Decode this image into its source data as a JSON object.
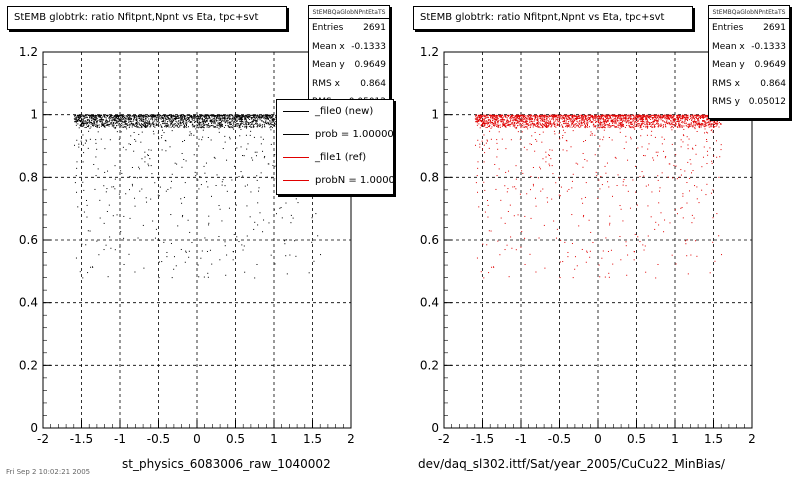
{
  "panels": [
    {
      "title": "StEMB globtrk: ratio Nfitpnt,Npnt vs Eta, tpc+svt",
      "stats_header": "StEMBQaGlobNPntEtaTS",
      "stats": [
        {
          "label": "Entries",
          "value": "2691"
        },
        {
          "label": "Mean x",
          "value": "-0.1333"
        },
        {
          "label": "Mean y",
          "value": "0.9649"
        },
        {
          "label": "RMS x",
          "value": "0.864"
        },
        {
          "label": "RMS y",
          "value": "0.05012"
        }
      ],
      "xtitle": "st_physics_6083006_raw_1040002",
      "marker_color": "#000000"
    },
    {
      "title": "StEMB globtrk: ratio Nfitpnt,Npnt vs Eta, tpc+svt",
      "stats_header": "StEMBQaGlobNPntEtaTS",
      "stats": [
        {
          "label": "Entries",
          "value": "2691"
        },
        {
          "label": "Mean x",
          "value": "-0.1333"
        },
        {
          "label": "Mean y",
          "value": "0.9649"
        },
        {
          "label": "RMS x",
          "value": "0.864"
        },
        {
          "label": "RMS y",
          "value": "0.05012"
        }
      ],
      "xtitle": "dev/daq_sl302.ittf/Sat/year_2005/CuCu22_MinBias/",
      "marker_color": "#e00000"
    }
  ],
  "legend": {
    "items": [
      {
        "label": "_file0 (new)",
        "color": "#000000"
      },
      {
        "label": "prob = 1.000000",
        "color": "#000000"
      },
      {
        "label": "_file1 (ref)",
        "color": "#e00000"
      },
      {
        "label": "probN = 1.000000",
        "color": "#e00000"
      }
    ]
  },
  "corner_text": "Fri Sep  2 10:02:21 2005",
  "chart_data": [
    {
      "type": "scatter",
      "title": "StEMB globtrk: ratio Nfitpnt,Npnt vs Eta, tpc+svt",
      "xlabel": "st_physics_6083006_raw_1040002",
      "ylabel": "",
      "xlim": [
        -2,
        2
      ],
      "ylim": [
        0,
        1.2
      ],
      "xticks": [
        "-2",
        "-1.5",
        "-1",
        "-0.5",
        "0",
        "0.5",
        "1",
        "1.5",
        "2"
      ],
      "yticks": [
        "0",
        "0.2",
        "0.4",
        "0.6",
        "0.8",
        "1",
        "1.2"
      ],
      "grid": true,
      "legend_position": "top-right",
      "series": [
        {
          "color": "#000000",
          "entries": 2691,
          "x_range": [
            -1.6,
            1.6
          ],
          "y_band": [
            0.96,
            1.0
          ],
          "y_min_sparse": 0.48
        }
      ]
    },
    {
      "type": "scatter",
      "title": "StEMB globtrk: ratio Nfitpnt,Npnt vs Eta, tpc+svt",
      "xlabel": "dev/daq_sl302.ittf/Sat/year_2005/CuCu22_MinBias/",
      "ylabel": "",
      "xlim": [
        -2,
        2
      ],
      "ylim": [
        0,
        1.2
      ],
      "xticks": [
        "-2",
        "-1.5",
        "-1",
        "-0.5",
        "0",
        "0.5",
        "1",
        "1.5",
        "2"
      ],
      "yticks": [
        "0",
        "0.2",
        "0.4",
        "0.6",
        "0.8",
        "1",
        "1.2"
      ],
      "grid": true,
      "series": [
        {
          "color": "#e00000",
          "entries": 2691,
          "x_range": [
            -1.6,
            1.6
          ],
          "y_band": [
            0.96,
            1.0
          ],
          "y_min_sparse": 0.48
        }
      ]
    }
  ]
}
